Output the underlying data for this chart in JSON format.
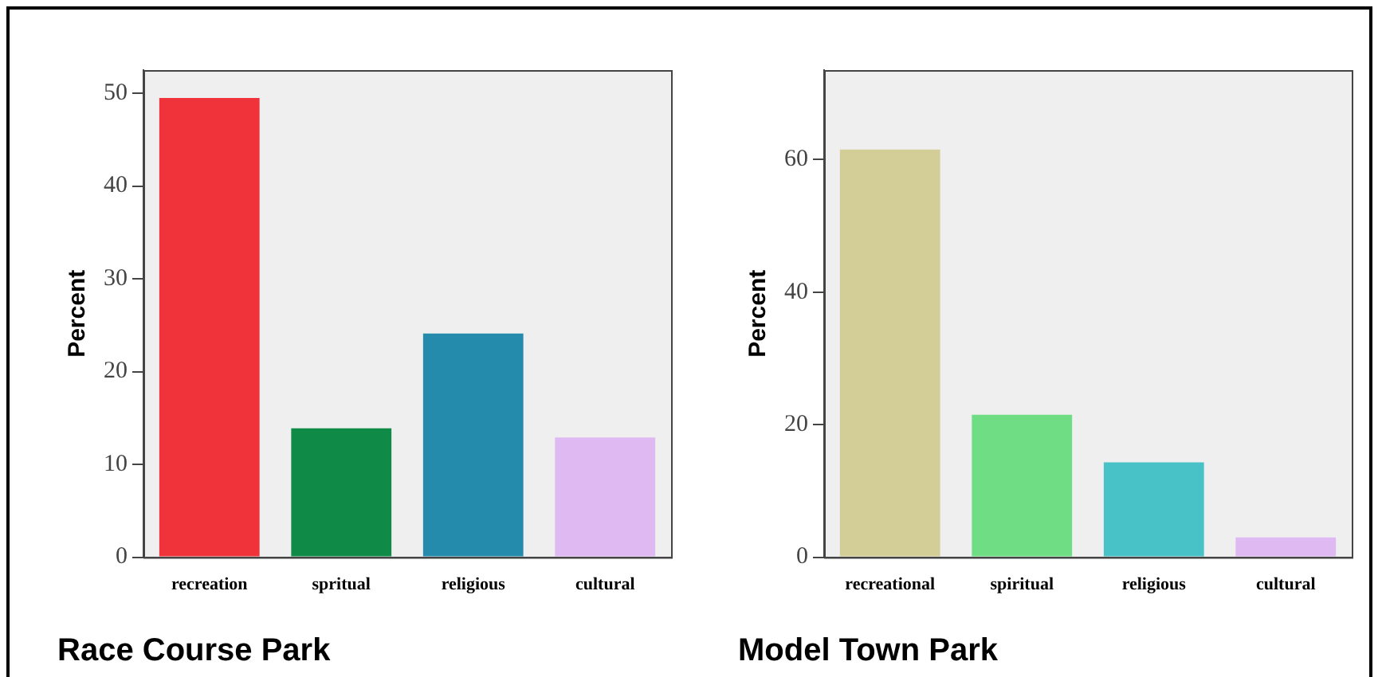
{
  "chart_data": [
    {
      "type": "bar",
      "title": "Race Course Park",
      "ylabel": "Percent",
      "categories": [
        "recreation",
        "spritual",
        "religious",
        "cultural"
      ],
      "values": [
        49.5,
        13.9,
        24.1,
        12.9
      ],
      "colors": [
        "#f0333a",
        "#0f8a47",
        "#258bad",
        "#dfb9f2"
      ],
      "ylim": [
        0,
        52.5
      ],
      "yticks": [
        0,
        10,
        20,
        30,
        40,
        50
      ],
      "grid": false
    },
    {
      "type": "bar",
      "title": "Model Town Park",
      "ylabel": "Percent",
      "categories": [
        "recreational",
        "spiritual",
        "religious",
        "cultural"
      ],
      "values": [
        61.5,
        21.5,
        14.3,
        3.0
      ],
      "colors": [
        "#d3ce97",
        "#6fdd83",
        "#48c2c7",
        "#dfb9f2"
      ],
      "ylim": [
        0,
        73.5
      ],
      "yticks": [
        0,
        20,
        40,
        60
      ],
      "grid": false
    }
  ]
}
